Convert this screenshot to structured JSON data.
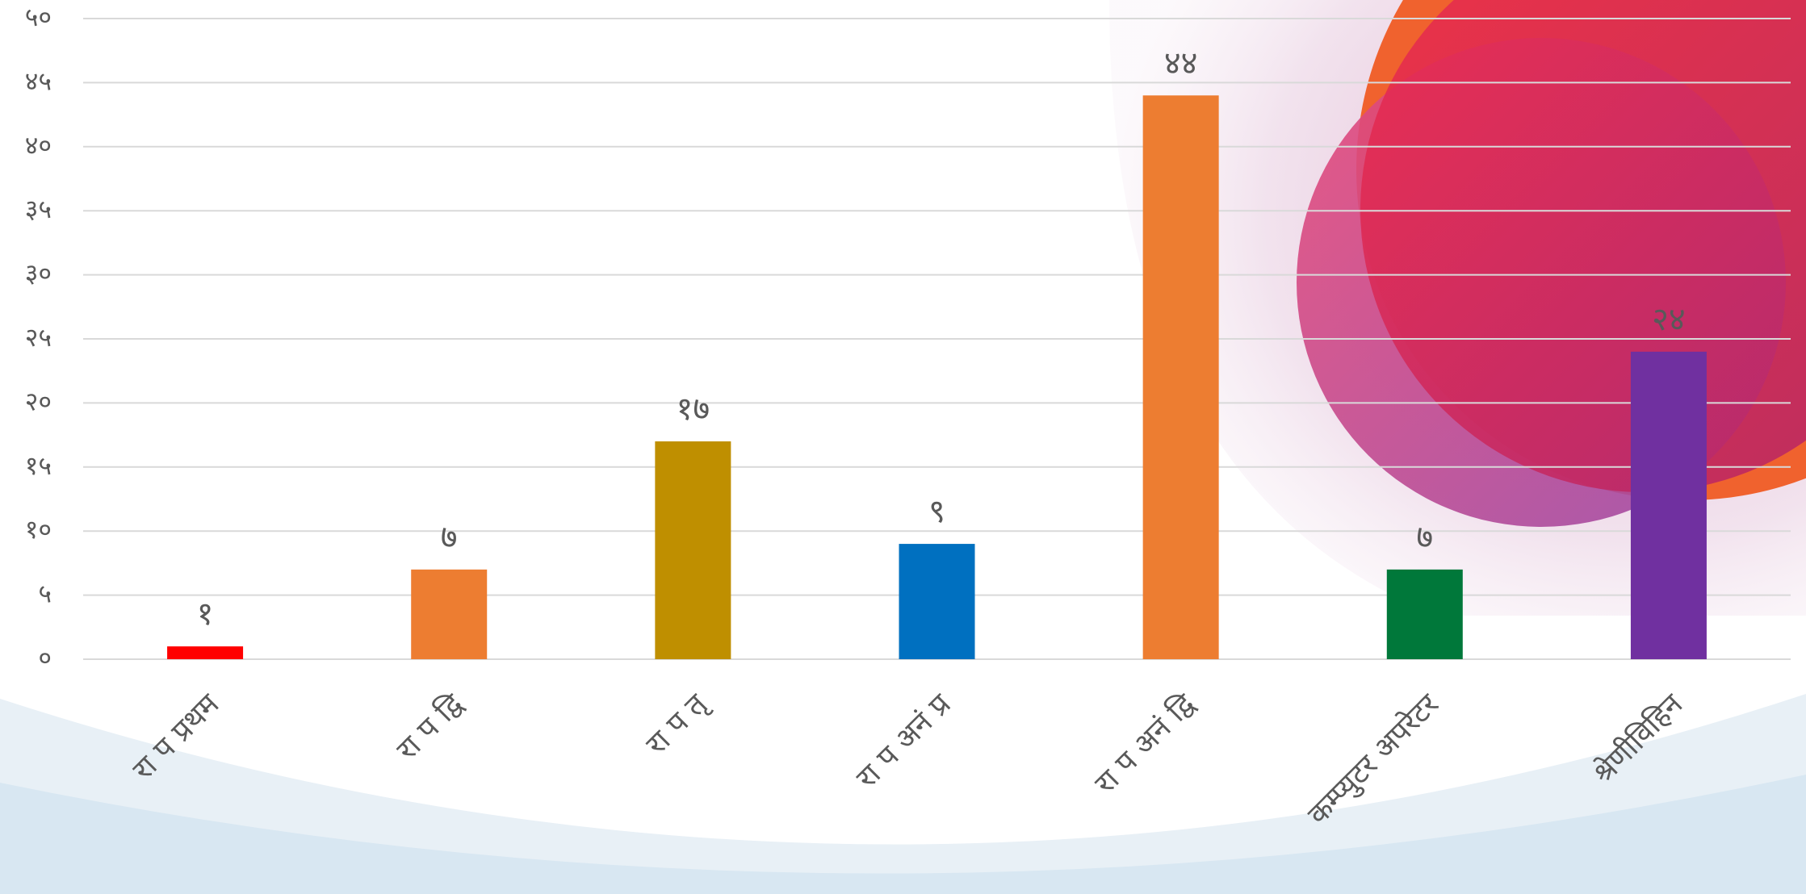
{
  "chart_data": {
    "type": "bar",
    "categories": [
      "रा प प्रथम",
      "रा प द्वि",
      "रा प तृ",
      "रा प अनं प्र",
      "रा प अनं द्वि",
      "कम्प्युटर अपरेटर",
      "श्रेणीविहिन"
    ],
    "values": [
      1,
      7,
      17,
      9,
      44,
      7,
      24
    ],
    "value_labels": [
      "१",
      "७",
      "१७",
      "९",
      "४४",
      "७",
      "२४"
    ],
    "colors": [
      "#ff0000",
      "#ed7d31",
      "#bf8f00",
      "#0070c0",
      "#ed7d31",
      "#00783a",
      "#7030a0"
    ],
    "ylim": [
      0,
      50
    ],
    "yticks": [
      {
        "value": 0,
        "label": "०"
      },
      {
        "value": 5,
        "label": "५"
      },
      {
        "value": 10,
        "label": "१०"
      },
      {
        "value": 15,
        "label": "१५"
      },
      {
        "value": 20,
        "label": "२०"
      },
      {
        "value": 25,
        "label": "२५"
      },
      {
        "value": 30,
        "label": "३०"
      },
      {
        "value": 35,
        "label": "३५"
      },
      {
        "value": 40,
        "label": "४०"
      },
      {
        "value": 45,
        "label": "४५"
      },
      {
        "value": 50,
        "label": "५०"
      }
    ],
    "grid": true
  }
}
